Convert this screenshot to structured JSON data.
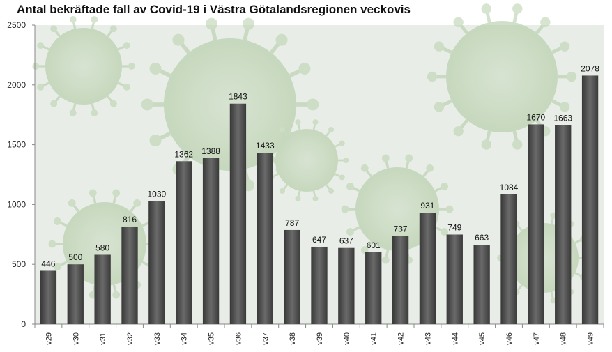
{
  "chart_data": {
    "type": "bar",
    "title": "Antal bekräftade fall av Covid-19 i Västra Götalandsregionen veckovis",
    "xlabel": "",
    "ylabel": "",
    "categories": [
      "v29",
      "v30",
      "v31",
      "v32",
      "v33",
      "v34",
      "v35",
      "v36",
      "v37",
      "v38",
      "v39",
      "v40",
      "v41",
      "v42",
      "v43",
      "v44",
      "v45",
      "v46",
      "v47",
      "v48",
      "v49"
    ],
    "values": [
      446,
      500,
      580,
      816,
      1030,
      1362,
      1388,
      1843,
      1433,
      787,
      647,
      637,
      601,
      737,
      931,
      749,
      663,
      1084,
      1670,
      1663,
      2078
    ],
    "ylim": [
      0,
      2500
    ],
    "yticks": [
      0,
      500,
      1000,
      1500,
      2000,
      2500
    ],
    "grid": false,
    "legend": "none",
    "bar_color": "#4a4a4a",
    "background": "faded green coronavirus illustration"
  }
}
